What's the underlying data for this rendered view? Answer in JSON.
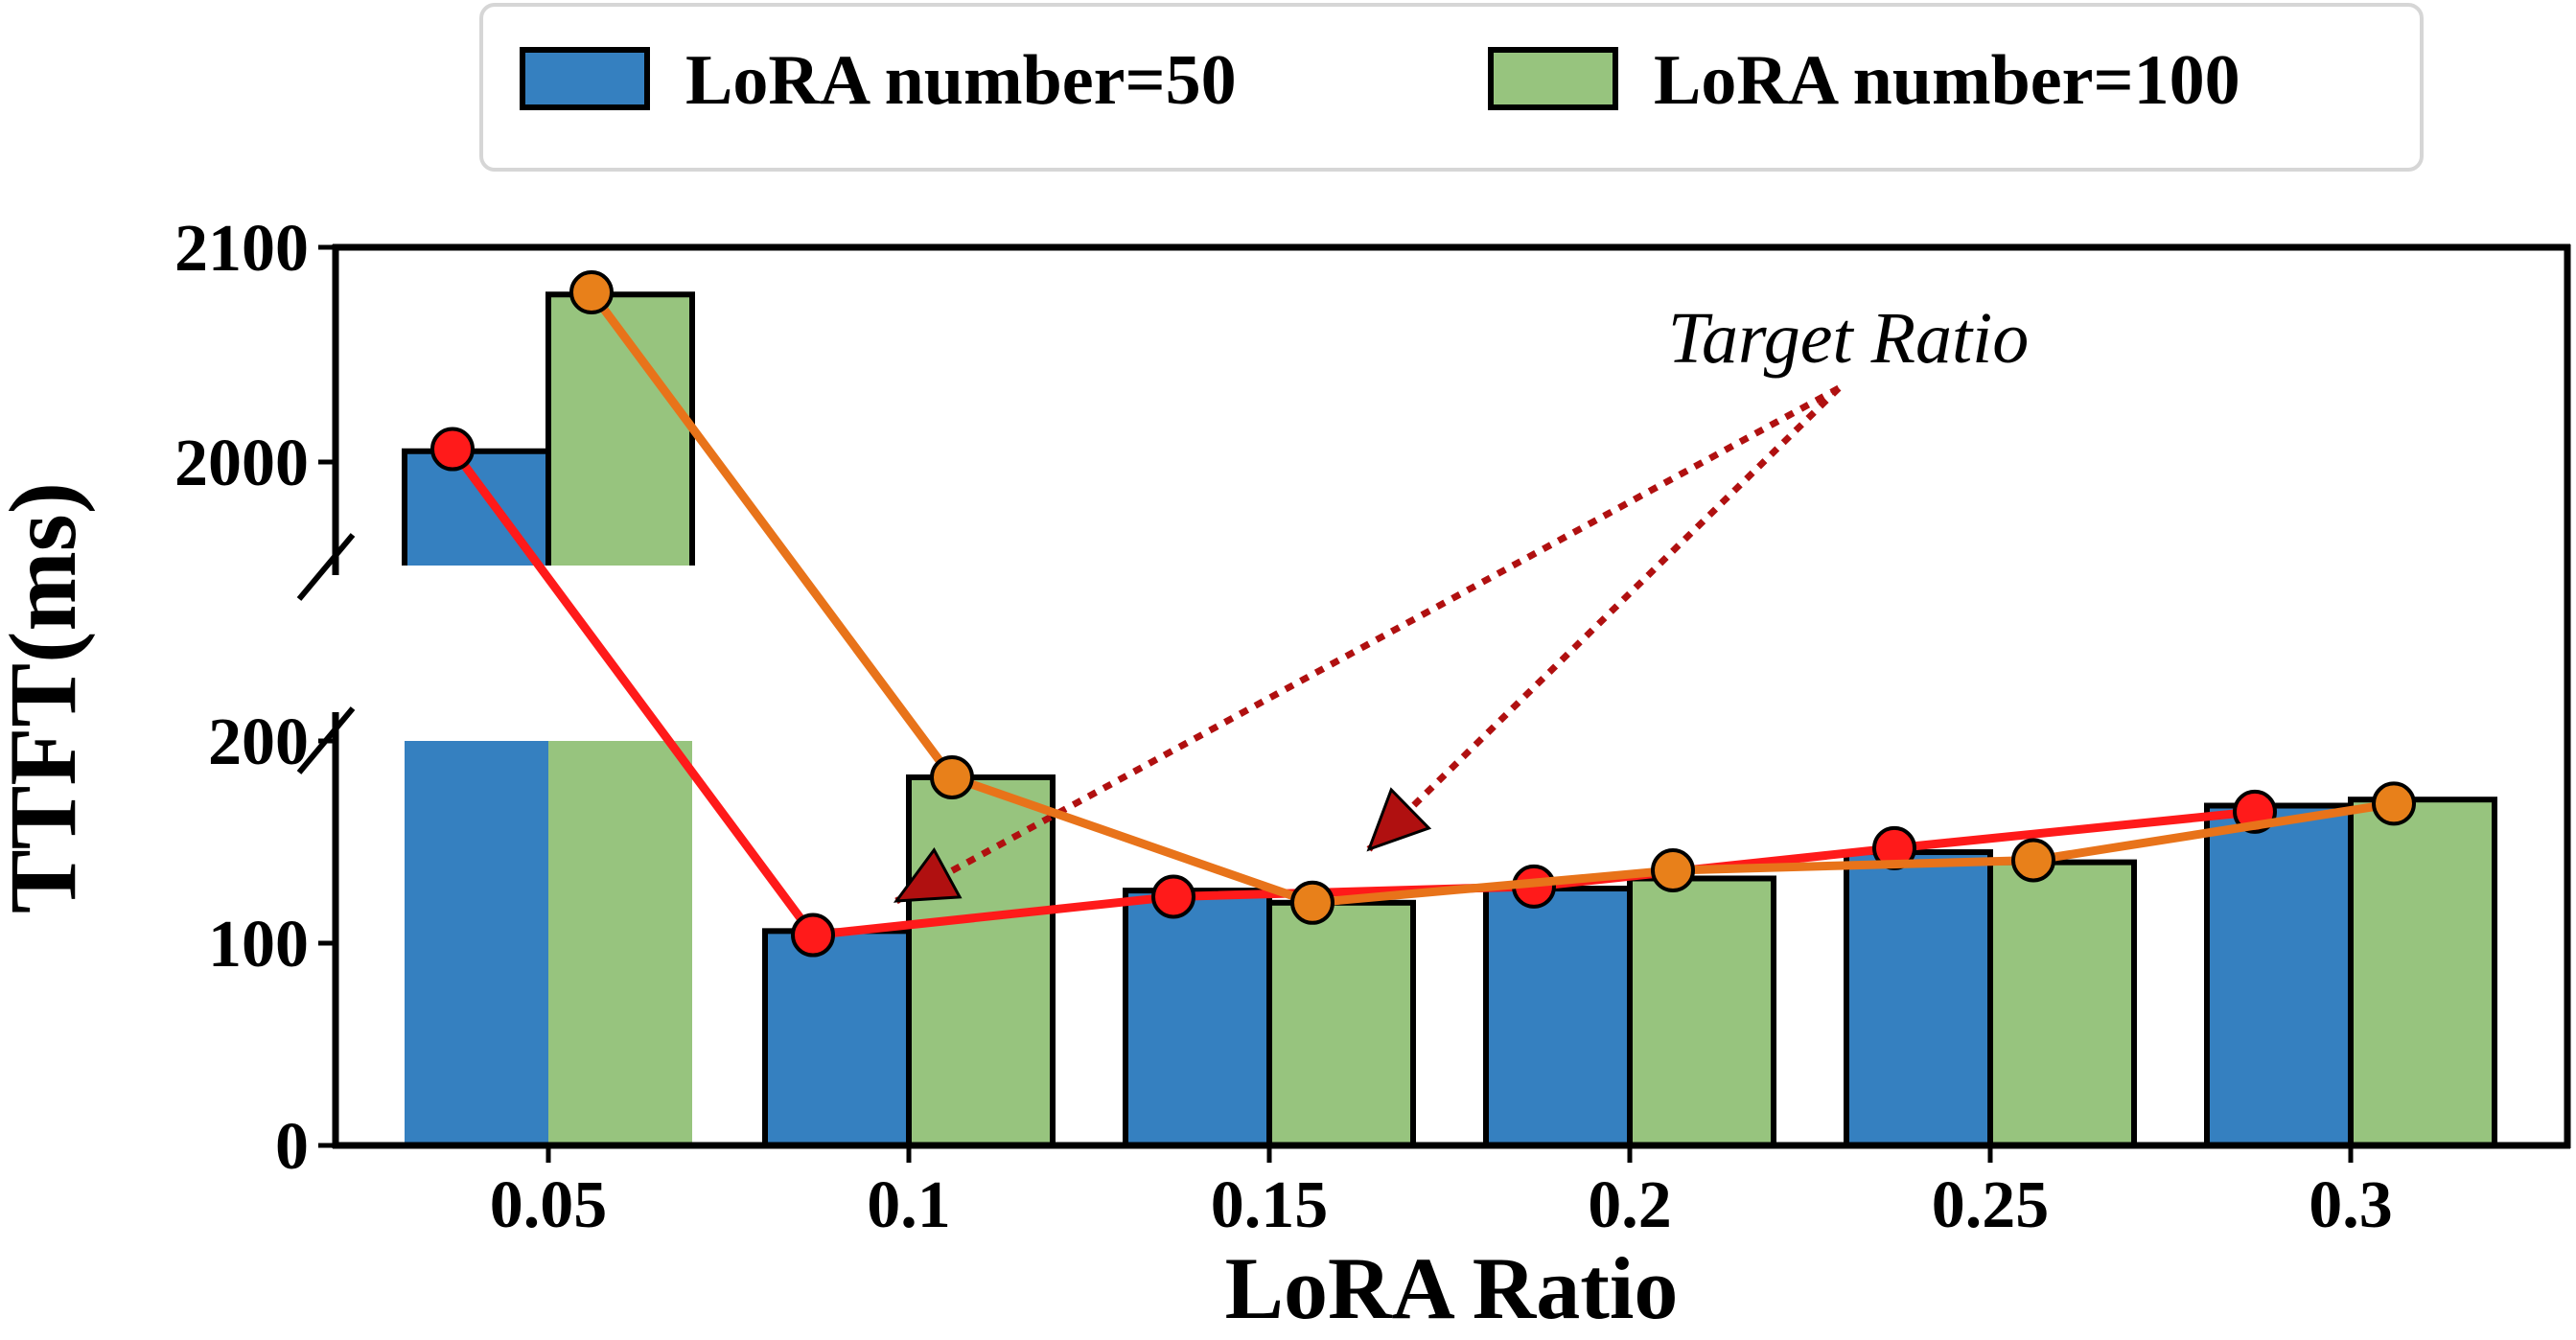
{
  "chart_data": {
    "type": "bar",
    "xlabel": "LoRA Ratio",
    "ylabel": "TTFT(ms)",
    "categories": [
      "0.05",
      "0.1",
      "0.15",
      "0.2",
      "0.25",
      "0.3"
    ],
    "series": [
      {
        "name": "LoRA number=50",
        "color": "#3580c0",
        "line_color": "#ff1a1a",
        "marker_color": "#ff1a1a",
        "values": [
          2005,
          106,
          126,
          127,
          145,
          168
        ]
      },
      {
        "name": "LoRA number=100",
        "color": "#97c47e",
        "line_color": "#e8731a",
        "marker_color": "#e8801a",
        "values": [
          2078,
          182,
          120,
          132,
          140,
          171
        ]
      }
    ],
    "line_points": [
      {
        "series": 0,
        "values": [
          2006,
          104,
          123,
          128,
          147,
          165
        ]
      },
      {
        "series": 1,
        "values": [
          2079,
          182,
          120,
          136,
          141,
          169
        ]
      }
    ],
    "axis": {
      "broken": true,
      "lower_range": [
        0,
        200
      ],
      "upper_range": [
        1950,
        2100
      ],
      "lower_ticks": [
        "0",
        "100",
        "200"
      ],
      "upper_ticks": [
        "2000",
        "2100"
      ]
    },
    "legend": {
      "position": "top-center",
      "columns": 2
    },
    "annotation": {
      "text": "Target Ratio",
      "targets": [
        "0.1",
        "0.15"
      ],
      "color": "#b01010"
    }
  }
}
